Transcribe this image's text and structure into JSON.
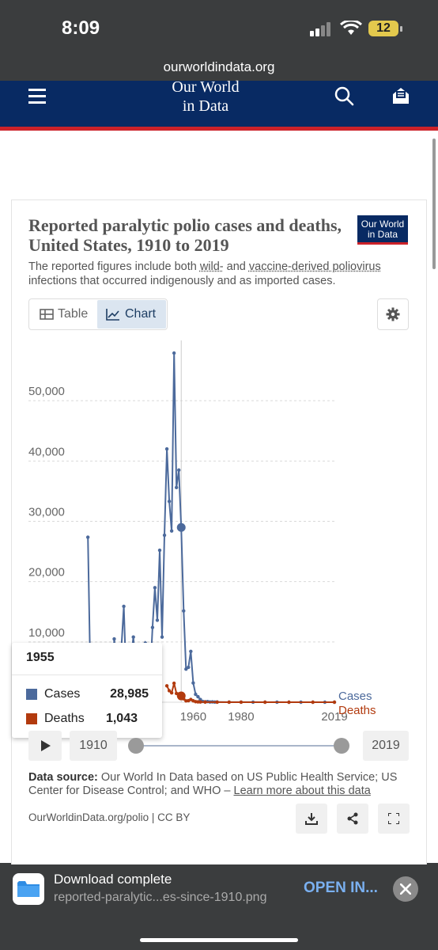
{
  "status_bar": {
    "time": "8:09",
    "battery": "12"
  },
  "browser": {
    "url": "ourworldindata.org"
  },
  "site": {
    "logo_line1": "Our World",
    "logo_line2": "in Data"
  },
  "chart_card": {
    "title": "Reported paralytic polio cases and deaths, United States, 1910 to 2019",
    "badge_line1": "Our World",
    "badge_line2": "in Data",
    "subtitle_before": "The reported figures include both ",
    "subtitle_link1": "wild-",
    "subtitle_mid": " and ",
    "subtitle_link2": "vaccine-derived poliovirus",
    "subtitle_after": " infections that occurred indigenously and as imported cases.",
    "tab_table": "Table",
    "tab_chart": "Chart"
  },
  "tooltip": {
    "year": "1955",
    "rows": [
      {
        "label": "Cases",
        "value": "28,985",
        "color": "#4c6a9c"
      },
      {
        "label": "Deaths",
        "value": "1,043",
        "color": "#b23a0e"
      }
    ]
  },
  "timeline": {
    "start": "1910",
    "end": "2019"
  },
  "source": {
    "label": "Data source:",
    "text": " Our World In Data based on US Public Health Service; US Center for Disease Control; and WHO – ",
    "link": "Learn more about this data"
  },
  "footer": {
    "license": "OurWorldinData.org/polio | CC BY"
  },
  "download": {
    "title": "Download complete",
    "filename": "reported-paralytic...es-since-1910.png",
    "action": "OPEN IN..."
  },
  "chart_data": {
    "type": "line",
    "x_ticks": [
      "1960",
      "1980",
      "2019"
    ],
    "y_ticks": [
      "10,000",
      "20,000",
      "30,000",
      "40,000",
      "50,000"
    ],
    "ylim": [
      0,
      60000
    ],
    "xlim": [
      1910,
      2019
    ],
    "grid": true,
    "series": [
      {
        "name": "Cases",
        "color": "#4c6a9c",
        "points": [
          [
            1916,
            27363
          ],
          [
            1917,
            5000
          ],
          [
            1918,
            2500
          ],
          [
            1919,
            2000
          ],
          [
            1920,
            2300
          ],
          [
            1921,
            6300
          ],
          [
            1922,
            2200
          ],
          [
            1923,
            3200
          ],
          [
            1924,
            5300
          ],
          [
            1925,
            6100
          ],
          [
            1926,
            2800
          ],
          [
            1927,
            10500
          ],
          [
            1928,
            5200
          ],
          [
            1929,
            2800
          ],
          [
            1930,
            9200
          ],
          [
            1931,
            15900
          ],
          [
            1932,
            3800
          ],
          [
            1933,
            5000
          ],
          [
            1934,
            7500
          ],
          [
            1935,
            10800
          ],
          [
            1936,
            4500
          ],
          [
            1937,
            9500
          ],
          [
            1938,
            1700
          ],
          [
            1939,
            7300
          ],
          [
            1940,
            9800
          ],
          [
            1941,
            8900
          ],
          [
            1942,
            4200
          ],
          [
            1943,
            12400
          ],
          [
            1944,
            19000
          ],
          [
            1945,
            13600
          ],
          [
            1946,
            25200
          ],
          [
            1947,
            10800
          ],
          [
            1948,
            27700
          ],
          [
            1949,
            42000
          ],
          [
            1950,
            33300
          ],
          [
            1951,
            28400
          ],
          [
            1952,
            57900
          ],
          [
            1953,
            35600
          ],
          [
            1954,
            38500
          ],
          [
            1955,
            28985
          ],
          [
            1956,
            15140
          ],
          [
            1957,
            5485
          ],
          [
            1958,
            5787
          ],
          [
            1959,
            8425
          ],
          [
            1960,
            3190
          ],
          [
            1961,
            1312
          ],
          [
            1962,
            910
          ],
          [
            1963,
            449
          ],
          [
            1964,
            122
          ],
          [
            1965,
            72
          ],
          [
            1966,
            113
          ],
          [
            1967,
            41
          ],
          [
            1968,
            53
          ],
          [
            1969,
            20
          ],
          [
            1970,
            33
          ],
          [
            1975,
            8
          ],
          [
            1980,
            9
          ],
          [
            1985,
            7
          ],
          [
            1990,
            6
          ],
          [
            1995,
            7
          ],
          [
            2000,
            0
          ],
          [
            2005,
            1
          ],
          [
            2010,
            0
          ],
          [
            2015,
            0
          ],
          [
            2019,
            0
          ]
        ]
      },
      {
        "name": "Deaths",
        "color": "#b23a0e",
        "points": [
          [
            1949,
            2720
          ],
          [
            1950,
            1904
          ],
          [
            1951,
            1551
          ],
          [
            1952,
            3145
          ],
          [
            1953,
            1450
          ],
          [
            1954,
            1368
          ],
          [
            1955,
            1043
          ],
          [
            1956,
            566
          ],
          [
            1957,
            221
          ],
          [
            1958,
            255
          ],
          [
            1959,
            454
          ],
          [
            1960,
            230
          ],
          [
            1961,
            90
          ],
          [
            1962,
            60
          ],
          [
            1963,
            41
          ],
          [
            1965,
            16
          ],
          [
            1970,
            7
          ],
          [
            1975,
            3
          ],
          [
            1980,
            2
          ],
          [
            1990,
            0
          ],
          [
            2000,
            0
          ],
          [
            2010,
            0
          ],
          [
            2019,
            0
          ]
        ]
      }
    ],
    "highlight_year": 1955,
    "end_labels": [
      "Cases",
      "Deaths"
    ]
  }
}
